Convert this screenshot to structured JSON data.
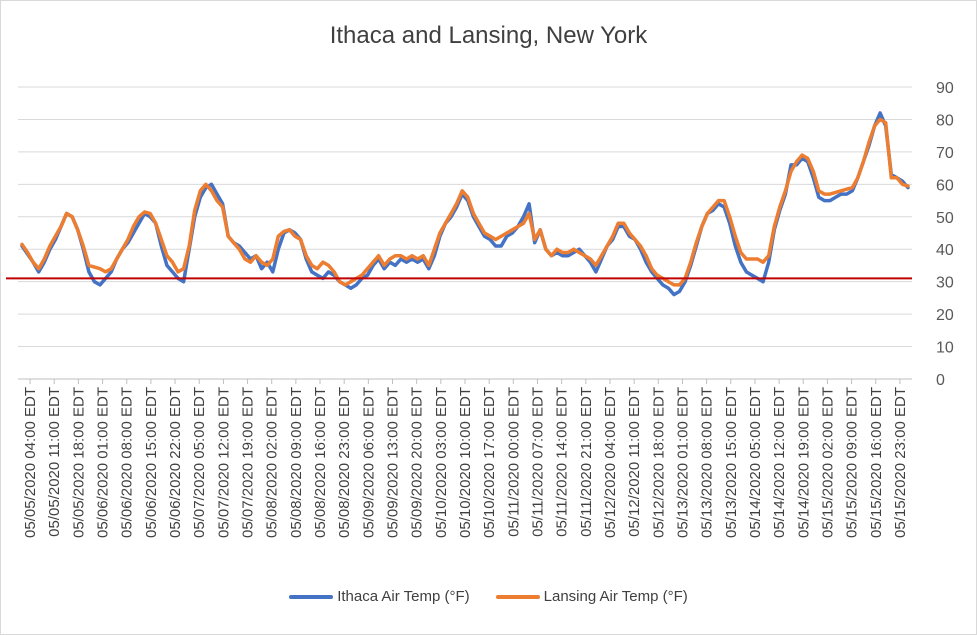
{
  "chart_data": {
    "type": "line",
    "title": "Ithaca and Lansing, New York",
    "xlabel": "",
    "ylabel": "",
    "ylim": [
      0,
      90
    ],
    "y_ticks": [
      0,
      10,
      20,
      30,
      40,
      50,
      60,
      70,
      80,
      90
    ],
    "y_axis_side": "right",
    "grid": true,
    "legend_position": "bottom",
    "reference_line": {
      "value": 31,
      "color": "#c00000"
    },
    "x_tick_labels": [
      "05/05/2020 04:00 EDT",
      "05/05/2020 11:00 EDT",
      "05/05/2020 18:00 EDT",
      "05/06/2020 01:00 EDT",
      "05/06/2020 08:00 EDT",
      "05/06/2020 15:00 EDT",
      "05/06/2020 22:00 EDT",
      "05/07/2020 05:00 EDT",
      "05/07/2020 12:00 EDT",
      "05/07/2020 19:00 EDT",
      "05/08/2020 02:00 EDT",
      "05/08/2020 09:00 EDT",
      "05/08/2020 16:00 EDT",
      "05/08/2020 23:00 EDT",
      "05/09/2020 06:00 EDT",
      "05/09/2020 13:00 EDT",
      "05/09/2020 20:00 EDT",
      "05/10/2020 03:00 EDT",
      "05/10/2020 10:00 EDT",
      "05/10/2020 17:00 EDT",
      "05/11/2020 00:00 EDT",
      "05/11/2020 07:00 EDT",
      "05/11/2020 14:00 EDT",
      "05/11/2020 21:00 EDT",
      "05/12/2020 04:00 EDT",
      "05/12/2020 11:00 EDT",
      "05/12/2020 18:00 EDT",
      "05/13/2020 01:00 EDT",
      "05/13/2020 08:00 EDT",
      "05/13/2020 15:00 EDT",
      "05/14/2020 05:00 EDT",
      "05/14/2020 12:00 EDT",
      "05/14/2020 19:00 EDT",
      "05/15/2020 02:00 EDT",
      "05/15/2020 09:00 EDT",
      "05/15/2020 16:00 EDT",
      "05/15/2020 23:00 EDT"
    ],
    "series": [
      {
        "name": "Ithaca Air Temp (°F)",
        "color": "#4472c4",
        "points": [
          [
            0,
            41
          ],
          [
            1,
            38.5
          ],
          [
            2,
            36
          ],
          [
            3,
            33
          ],
          [
            4,
            36
          ],
          [
            5,
            40
          ],
          [
            6,
            43
          ],
          [
            7,
            47
          ],
          [
            8,
            51
          ],
          [
            9,
            50
          ],
          [
            10,
            46
          ],
          [
            11,
            40
          ],
          [
            12,
            33
          ],
          [
            13,
            30
          ],
          [
            14,
            29
          ],
          [
            15,
            31
          ],
          [
            16,
            33
          ],
          [
            17,
            37
          ],
          [
            18,
            40
          ],
          [
            19,
            42
          ],
          [
            20,
            45
          ],
          [
            21,
            48
          ],
          [
            22,
            51
          ],
          [
            23,
            50
          ],
          [
            24,
            48
          ],
          [
            25,
            41
          ],
          [
            26,
            35
          ],
          [
            27,
            33
          ],
          [
            28,
            31
          ],
          [
            29,
            30
          ],
          [
            30,
            40
          ],
          [
            31,
            50
          ],
          [
            32,
            56
          ],
          [
            33,
            59
          ],
          [
            34,
            60
          ],
          [
            35,
            57
          ],
          [
            36,
            54
          ],
          [
            37,
            44
          ],
          [
            38,
            42
          ],
          [
            39,
            41
          ],
          [
            40,
            39
          ],
          [
            41,
            37
          ],
          [
            42,
            38
          ],
          [
            43,
            34
          ],
          [
            44,
            36
          ],
          [
            45,
            33
          ],
          [
            46,
            40
          ],
          [
            47,
            45
          ],
          [
            48,
            46
          ],
          [
            49,
            45
          ],
          [
            50,
            43
          ],
          [
            51,
            37
          ],
          [
            52,
            33
          ],
          [
            53,
            32
          ],
          [
            54,
            31
          ],
          [
            55,
            33
          ],
          [
            56,
            32
          ],
          [
            57,
            30
          ],
          [
            58,
            29
          ],
          [
            59,
            28
          ],
          [
            60,
            29
          ],
          [
            61,
            31
          ],
          [
            62,
            32
          ],
          [
            63,
            35
          ],
          [
            64,
            37
          ],
          [
            65,
            34
          ],
          [
            66,
            36
          ],
          [
            67,
            35
          ],
          [
            68,
            37
          ],
          [
            69,
            36
          ],
          [
            70,
            37
          ],
          [
            71,
            36
          ],
          [
            72,
            37
          ],
          [
            73,
            34
          ],
          [
            74,
            38
          ],
          [
            75,
            44
          ],
          [
            76,
            48
          ],
          [
            77,
            50
          ],
          [
            78,
            53
          ],
          [
            79,
            57
          ],
          [
            80,
            55
          ],
          [
            81,
            50
          ],
          [
            82,
            47
          ],
          [
            83,
            44
          ],
          [
            84,
            43
          ],
          [
            85,
            41
          ],
          [
            86,
            41
          ],
          [
            87,
            44
          ],
          [
            88,
            45
          ],
          [
            89,
            47
          ],
          [
            90,
            50
          ],
          [
            91,
            54
          ],
          [
            92,
            42
          ],
          [
            93,
            46
          ],
          [
            94,
            40
          ],
          [
            95,
            38
          ],
          [
            96,
            39
          ],
          [
            97,
            38
          ],
          [
            98,
            38
          ],
          [
            99,
            39
          ],
          [
            100,
            40
          ],
          [
            101,
            38
          ],
          [
            102,
            36
          ],
          [
            103,
            33
          ],
          [
            104,
            37
          ],
          [
            105,
            41
          ],
          [
            106,
            43
          ],
          [
            107,
            47
          ],
          [
            108,
            47
          ],
          [
            109,
            44
          ],
          [
            110,
            43
          ],
          [
            111,
            40
          ],
          [
            112,
            36
          ],
          [
            113,
            33
          ],
          [
            114,
            31
          ],
          [
            115,
            29
          ],
          [
            116,
            28
          ],
          [
            117,
            26
          ],
          [
            118,
            27
          ],
          [
            119,
            30
          ],
          [
            120,
            35
          ],
          [
            121,
            41
          ],
          [
            122,
            47
          ],
          [
            123,
            51
          ],
          [
            124,
            52
          ],
          [
            125,
            54
          ],
          [
            126,
            53
          ],
          [
            127,
            48
          ],
          [
            128,
            41
          ],
          [
            129,
            36
          ],
          [
            130,
            33
          ],
          [
            131,
            32
          ],
          [
            132,
            31
          ],
          [
            133,
            30
          ],
          [
            134,
            36
          ],
          [
            135,
            46
          ],
          [
            136,
            52
          ],
          [
            137,
            57
          ],
          [
            138,
            66
          ],
          [
            139,
            66
          ],
          [
            140,
            68
          ],
          [
            141,
            67
          ],
          [
            142,
            62
          ],
          [
            143,
            56
          ],
          [
            144,
            55
          ],
          [
            145,
            55
          ],
          [
            146,
            56
          ],
          [
            147,
            57
          ],
          [
            148,
            57
          ],
          [
            149,
            58
          ],
          [
            150,
            62
          ],
          [
            151,
            67
          ],
          [
            152,
            72
          ],
          [
            153,
            78
          ],
          [
            154,
            82
          ],
          [
            155,
            78
          ],
          [
            156,
            63
          ],
          [
            157,
            62
          ],
          [
            158,
            61
          ],
          [
            159,
            59
          ]
        ]
      },
      {
        "name": "Lansing Air Temp (°F)",
        "color": "#ed7d31",
        "points": [
          [
            0,
            41.5
          ],
          [
            1,
            39
          ],
          [
            2,
            36
          ],
          [
            3,
            34
          ],
          [
            4,
            37
          ],
          [
            5,
            41
          ],
          [
            6,
            44
          ],
          [
            7,
            47
          ],
          [
            8,
            51
          ],
          [
            9,
            50
          ],
          [
            10,
            46
          ],
          [
            11,
            41
          ],
          [
            12,
            35
          ],
          [
            13,
            34.5
          ],
          [
            14,
            34
          ],
          [
            15,
            33
          ],
          [
            16,
            34
          ],
          [
            17,
            37
          ],
          [
            18,
            40
          ],
          [
            19,
            43
          ],
          [
            20,
            47
          ],
          [
            21,
            50
          ],
          [
            22,
            51.5
          ],
          [
            23,
            51
          ],
          [
            24,
            48
          ],
          [
            25,
            43
          ],
          [
            26,
            38
          ],
          [
            27,
            36
          ],
          [
            28,
            33
          ],
          [
            29,
            34
          ],
          [
            30,
            41
          ],
          [
            31,
            52
          ],
          [
            32,
            58
          ],
          [
            33,
            60
          ],
          [
            34,
            58
          ],
          [
            35,
            55
          ],
          [
            36,
            53
          ],
          [
            37,
            44
          ],
          [
            38,
            42
          ],
          [
            39,
            40
          ],
          [
            40,
            37
          ],
          [
            41,
            36
          ],
          [
            42,
            38
          ],
          [
            43,
            36
          ],
          [
            44,
            35
          ],
          [
            45,
            37
          ],
          [
            46,
            44
          ],
          [
            47,
            45.5
          ],
          [
            48,
            46
          ],
          [
            49,
            44
          ],
          [
            50,
            43
          ],
          [
            51,
            38
          ],
          [
            52,
            35
          ],
          [
            53,
            34
          ],
          [
            54,
            36
          ],
          [
            55,
            35
          ],
          [
            56,
            33
          ],
          [
            57,
            30
          ],
          [
            58,
            29
          ],
          [
            59,
            30
          ],
          [
            60,
            31
          ],
          [
            61,
            32
          ],
          [
            62,
            34
          ],
          [
            63,
            36
          ],
          [
            64,
            38
          ],
          [
            65,
            35
          ],
          [
            66,
            37
          ],
          [
            67,
            38
          ],
          [
            68,
            38
          ],
          [
            69,
            37
          ],
          [
            70,
            38
          ],
          [
            71,
            37
          ],
          [
            72,
            38
          ],
          [
            73,
            35
          ],
          [
            74,
            40
          ],
          [
            75,
            45
          ],
          [
            76,
            48
          ],
          [
            77,
            51
          ],
          [
            78,
            54
          ],
          [
            79,
            58
          ],
          [
            80,
            56
          ],
          [
            81,
            51
          ],
          [
            82,
            48
          ],
          [
            83,
            45
          ],
          [
            84,
            44
          ],
          [
            85,
            43
          ],
          [
            86,
            44
          ],
          [
            87,
            45
          ],
          [
            88,
            46
          ],
          [
            89,
            47
          ],
          [
            90,
            48
          ],
          [
            91,
            51
          ],
          [
            92,
            43
          ],
          [
            93,
            46
          ],
          [
            94,
            40
          ],
          [
            95,
            38
          ],
          [
            96,
            40
          ],
          [
            97,
            39
          ],
          [
            98,
            39
          ],
          [
            99,
            40
          ],
          [
            100,
            39
          ],
          [
            101,
            38
          ],
          [
            102,
            37
          ],
          [
            103,
            35
          ],
          [
            104,
            38
          ],
          [
            105,
            41
          ],
          [
            106,
            44
          ],
          [
            107,
            48
          ],
          [
            108,
            48
          ],
          [
            109,
            45
          ],
          [
            110,
            43
          ],
          [
            111,
            41
          ],
          [
            112,
            38
          ],
          [
            113,
            34
          ],
          [
            114,
            32
          ],
          [
            115,
            31
          ],
          [
            116,
            30
          ],
          [
            117,
            29
          ],
          [
            118,
            29
          ],
          [
            119,
            31
          ],
          [
            120,
            36
          ],
          [
            121,
            42
          ],
          [
            122,
            47
          ],
          [
            123,
            51
          ],
          [
            124,
            53
          ],
          [
            125,
            55
          ],
          [
            126,
            55
          ],
          [
            127,
            50
          ],
          [
            128,
            44
          ],
          [
            129,
            39
          ],
          [
            130,
            37
          ],
          [
            131,
            37
          ],
          [
            132,
            37
          ],
          [
            133,
            36
          ],
          [
            134,
            38
          ],
          [
            135,
            47
          ],
          [
            136,
            53
          ],
          [
            137,
            58
          ],
          [
            138,
            64
          ],
          [
            139,
            67
          ],
          [
            140,
            69
          ],
          [
            141,
            68
          ],
          [
            142,
            64
          ],
          [
            143,
            58
          ],
          [
            144,
            57
          ],
          [
            145,
            57
          ],
          [
            146,
            57.5
          ],
          [
            147,
            58
          ],
          [
            148,
            58.5
          ],
          [
            149,
            59
          ],
          [
            150,
            62
          ],
          [
            151,
            67
          ],
          [
            152,
            73
          ],
          [
            153,
            78
          ],
          [
            154,
            80
          ],
          [
            155,
            79
          ],
          [
            156,
            62
          ],
          [
            157,
            62
          ],
          [
            158,
            60
          ],
          [
            159,
            59.5
          ]
        ]
      }
    ]
  }
}
